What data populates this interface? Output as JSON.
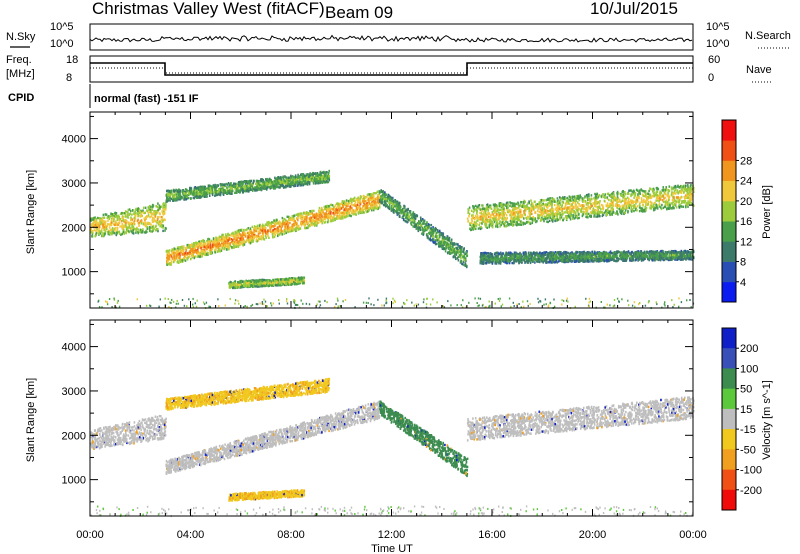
{
  "header": {
    "site": "Christmas Valley West (fitACF)",
    "beam": "Beam 09",
    "date": "10/Jul/2015"
  },
  "noise_panel": {
    "left_label": "N.Sky",
    "right_label": "N.Search",
    "left_ticks": [
      "10^5",
      "10^0"
    ],
    "right_ticks": [
      "10^5",
      "10^0"
    ]
  },
  "freq_panel": {
    "left_label_line1": "Freq.",
    "left_label_line2": "[MHz]",
    "right_label": "Nave",
    "left_ticks": [
      "18",
      "8"
    ],
    "right_ticks": [
      "60",
      "0"
    ]
  },
  "cpid_panel": {
    "label": "CPID",
    "mode_text": "normal (fast) -151 IF"
  },
  "chart_data": [
    {
      "type": "heatmap",
      "name": "power",
      "ylabel": "Slant Range [km]",
      "xlabel": "",
      "x_ticks": [
        "00:00",
        "04:00",
        "08:00",
        "12:00",
        "16:00",
        "20:00",
        "00:00"
      ],
      "y_ticks": [
        "1000",
        "2000",
        "3000",
        "4000"
      ],
      "xlim_hours": [
        0,
        24
      ],
      "ylim_km": [
        180,
        4600
      ],
      "colorbar_label": "Power [dB]",
      "colorbar_ticks": [
        "4",
        "8",
        "12",
        "16",
        "20",
        "24",
        "28"
      ],
      "colorbar_colors": [
        "#0a1cf0",
        "#2a4fb4",
        "#3c7a6a",
        "#4aa04a",
        "#9ccc3c",
        "#f0c83c",
        "#f0961e",
        "#f05014",
        "#f01010"
      ],
      "bands": [
        {
          "t0": 0.0,
          "t1": 3.0,
          "r_start": [
            1800,
            2250
          ],
          "r_end": [
            1950,
            2600
          ],
          "level": 22
        },
        {
          "t0": 3.0,
          "t1": 11.5,
          "r_start": [
            1150,
            1500
          ],
          "r_end": [
            2450,
            2850
          ],
          "level": 26
        },
        {
          "t0": 3.0,
          "t1": 9.5,
          "r_start": [
            2600,
            2850
          ],
          "r_end": [
            3050,
            3300
          ],
          "level": 15
        },
        {
          "t0": 11.5,
          "t1": 15.0,
          "r_start": [
            2600,
            2900
          ],
          "r_end": [
            1100,
            1500
          ],
          "level": 14
        },
        {
          "t0": 15.0,
          "t1": 24.0,
          "r_start": [
            1950,
            2500
          ],
          "r_end": [
            2500,
            3000
          ],
          "level": 21
        },
        {
          "t0": 15.5,
          "t1": 24.0,
          "r_start": [
            1200,
            1450
          ],
          "r_end": [
            1300,
            1500
          ],
          "level": 12
        },
        {
          "t0": 5.5,
          "t1": 8.5,
          "r_start": [
            650,
            800
          ],
          "r_end": [
            750,
            900
          ],
          "level": 19
        }
      ]
    },
    {
      "type": "heatmap",
      "name": "velocity",
      "ylabel": "Slant Range [km]",
      "xlabel": "Time UT",
      "x_ticks": [
        "00:00",
        "04:00",
        "08:00",
        "12:00",
        "16:00",
        "20:00",
        "00:00"
      ],
      "y_ticks": [
        "1000",
        "2000",
        "3000",
        "4000"
      ],
      "xlim_hours": [
        0,
        24
      ],
      "ylim_km": [
        180,
        4600
      ],
      "colorbar_label": "Velocity [m s^-1]",
      "colorbar_ticks": [
        "200",
        "100",
        "50",
        "15",
        "-15",
        "-50",
        "-100",
        "-200"
      ],
      "colorbar_colors": [
        "#1020c8",
        "#3850b8",
        "#3c8c50",
        "#5cc83c",
        "#bebebe",
        "#f0c81e",
        "#f0a01e",
        "#f05014",
        "#f00a0a"
      ],
      "bands": [
        {
          "t0": 0.0,
          "t1": 3.0,
          "r_start": [
            1700,
            2150
          ],
          "r_end": [
            1950,
            2500
          ],
          "level": 0
        },
        {
          "t0": 3.0,
          "t1": 11.5,
          "r_start": [
            1150,
            1450
          ],
          "r_end": [
            2400,
            2800
          ],
          "level": 0
        },
        {
          "t0": 3.0,
          "t1": 9.5,
          "r_start": [
            2600,
            2850
          ],
          "r_end": [
            3000,
            3300
          ],
          "level": -70
        },
        {
          "t0": 11.5,
          "t1": 15.0,
          "r_start": [
            2500,
            2800
          ],
          "r_end": [
            1100,
            1500
          ],
          "level": 40
        },
        {
          "t0": 15.0,
          "t1": 24.0,
          "r_start": [
            1900,
            2400
          ],
          "r_end": [
            2400,
            2900
          ],
          "level": 0
        },
        {
          "t0": 5.5,
          "t1": 8.5,
          "r_start": [
            550,
            700
          ],
          "r_end": [
            650,
            800
          ],
          "level": -70
        }
      ]
    }
  ]
}
